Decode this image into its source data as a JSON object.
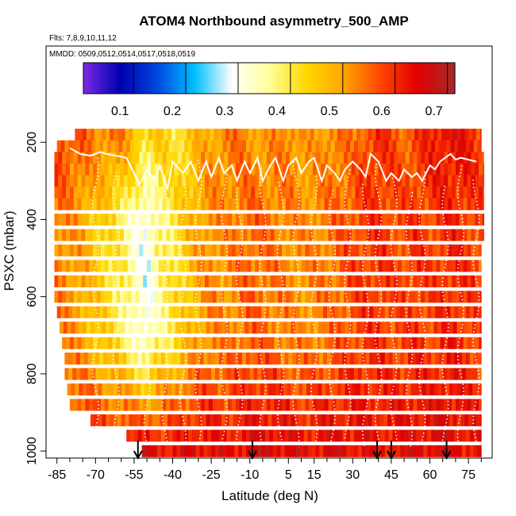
{
  "chart_data": {
    "type": "heatmap",
    "title": "ATOM4 Northbound asymmetry_500_AMP",
    "flights_label": "Flts: 7,8,9,10,11,12",
    "dates_label": "MMDD: 0509,0512,0514,0517,0518,0519",
    "xlabel": "Latitude (deg N)",
    "ylabel": "PSXC (mbar)",
    "xlim": [
      -88,
      83
    ],
    "ylim": [
      1010,
      0
    ],
    "x_ticks": [
      -85,
      -70,
      -55,
      -40,
      -25,
      -10,
      5,
      15,
      30,
      45,
      60,
      75
    ],
    "x_minor_ticks": [
      -80,
      -75,
      -65,
      -60,
      -50,
      -45,
      -35,
      -30,
      -20,
      -15,
      -5,
      0,
      10,
      20,
      25,
      35,
      40,
      50,
      55,
      65,
      70,
      80
    ],
    "y_ticks": [
      200,
      400,
      600,
      800,
      1000
    ],
    "colorbar": {
      "ticks": [
        0.1,
        0.2,
        0.3,
        0.4,
        0.5,
        0.6,
        0.7
      ],
      "range": [
        0.03,
        0.74
      ],
      "colors": [
        "#7B2BE2",
        "#0000B0",
        "#0048E0",
        "#00BFFF",
        "#FFFFFF",
        "#FFFF99",
        "#FFD700",
        "#FFA500",
        "#FF4500",
        "#E00000",
        "#A52A2A"
      ]
    },
    "pressure_levels": [
      180,
      210,
      240,
      270,
      300,
      330,
      360,
      400,
      440,
      480,
      520,
      560,
      600,
      640,
      680,
      720,
      760,
      800,
      840,
      880,
      920,
      960,
      1000
    ],
    "row_latitude_extent": [
      [
        -78,
        80
      ],
      [
        -85,
        80
      ],
      [
        -86,
        81
      ],
      [
        -86,
        81
      ],
      [
        -86,
        81
      ],
      [
        -86,
        81
      ],
      [
        -86,
        81
      ],
      [
        -86,
        81
      ],
      [
        -86,
        81
      ],
      [
        -86,
        80
      ],
      [
        -86,
        80
      ],
      [
        -86,
        80
      ],
      [
        -86,
        80
      ],
      [
        -85,
        80
      ],
      [
        -84,
        80
      ],
      [
        -83,
        80
      ],
      [
        -82,
        80
      ],
      [
        -82,
        80
      ],
      [
        -81,
        80
      ],
      [
        -80,
        80
      ],
      [
        -72,
        80
      ],
      [
        -58,
        80
      ],
      [
        -52,
        80
      ]
    ],
    "value_profile": {
      "latitudes": [
        -86,
        -80,
        -75,
        -70,
        -65,
        -60,
        -55,
        -50,
        -45,
        -40,
        -35,
        -30,
        -25,
        -20,
        -15,
        -10,
        -5,
        0,
        5,
        10,
        15,
        20,
        25,
        30,
        35,
        40,
        45,
        50,
        55,
        60,
        65,
        70,
        75,
        80
      ],
      "upper_values": [
        0.62,
        0.6,
        0.58,
        0.55,
        0.56,
        0.55,
        0.5,
        0.45,
        0.47,
        0.44,
        0.46,
        0.5,
        0.52,
        0.55,
        0.56,
        0.54,
        0.52,
        0.54,
        0.56,
        0.53,
        0.52,
        0.55,
        0.56,
        0.55,
        0.6,
        0.62,
        0.6,
        0.58,
        0.6,
        0.63,
        0.66,
        0.65,
        0.64,
        0.62
      ],
      "mid_values": [
        0.56,
        0.54,
        0.52,
        0.48,
        0.45,
        0.42,
        0.36,
        0.32,
        0.4,
        0.43,
        0.48,
        0.52,
        0.55,
        0.54,
        0.56,
        0.58,
        0.57,
        0.56,
        0.55,
        0.54,
        0.55,
        0.56,
        0.58,
        0.6,
        0.61,
        0.62,
        0.6,
        0.6,
        0.62,
        0.6,
        0.62,
        0.63,
        0.61,
        0.6
      ],
      "lower_values": [
        0.6,
        0.62,
        0.63,
        0.64,
        0.64,
        0.65,
        0.66,
        0.67,
        0.66,
        0.65,
        0.66,
        0.67,
        0.66,
        0.65,
        0.66,
        0.67,
        0.68,
        0.68,
        0.67,
        0.66,
        0.66,
        0.67,
        0.67,
        0.66,
        0.66,
        0.65,
        0.66,
        0.66,
        0.67,
        0.67,
        0.68,
        0.67,
        0.66,
        0.65
      ]
    },
    "tropopause_line": {
      "latitudes": [
        -80,
        -76,
        -72,
        -68,
        -66,
        -62,
        -58,
        -55,
        -53,
        -50,
        -47,
        -45,
        -42,
        -40,
        -36,
        -33,
        -30,
        -27,
        -25,
        -22,
        -20,
        -17,
        -15,
        -12,
        -10,
        -7,
        -5,
        -2,
        0,
        3,
        5,
        8,
        10,
        13,
        15,
        18,
        20,
        23,
        25,
        27,
        30,
        33,
        35,
        37,
        40,
        43,
        45,
        48,
        50,
        53,
        55,
        57,
        60,
        62,
        64,
        66,
        68,
        70,
        72,
        75,
        78
      ],
      "pressures": [
        215,
        230,
        235,
        225,
        230,
        235,
        240,
        280,
        310,
        270,
        300,
        260,
        320,
        250,
        280,
        250,
        300,
        250,
        290,
        240,
        280,
        260,
        300,
        250,
        280,
        240,
        300,
        260,
        240,
        300,
        260,
        240,
        280,
        250,
        240,
        300,
        260,
        280,
        300,
        270,
        250,
        270,
        290,
        230,
        250,
        300,
        280,
        300,
        270,
        290,
        280,
        300,
        260,
        270,
        250,
        240,
        230,
        245,
        240,
        245,
        250
      ]
    },
    "dotted_profiles_latitudes": [
      -70,
      -62,
      -50,
      -43,
      -36,
      -30,
      -20,
      -14,
      -5,
      2,
      8,
      15,
      22,
      28,
      35,
      40,
      46,
      52,
      57,
      66,
      72,
      78
    ],
    "flight_markers_latitude": [
      -53.5,
      -9,
      39.5,
      45,
      66.5
    ]
  }
}
